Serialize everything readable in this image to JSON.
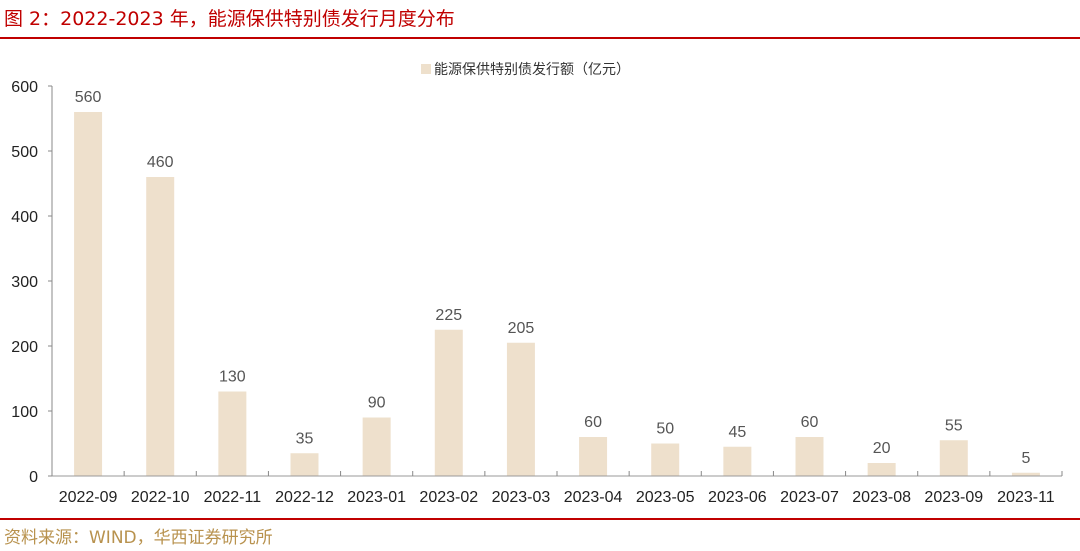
{
  "header": {
    "title": "图 2：2022-2023 年，能源保供特别债发行月度分布"
  },
  "footer": {
    "source": "资料来源：WIND，华西证券研究所"
  },
  "colors": {
    "accent": "#c00000",
    "bar": "#eee0cc",
    "source_text": "#b8924e"
  },
  "chart_data": {
    "type": "bar",
    "title": "",
    "legend": [
      "能源保供特别债发行额（亿元）"
    ],
    "legend_position": "top",
    "categories": [
      "2022-09",
      "2022-10",
      "2022-11",
      "2022-12",
      "2023-01",
      "2023-02",
      "2023-03",
      "2023-04",
      "2023-05",
      "2023-06",
      "2023-07",
      "2023-08",
      "2023-09",
      "2023-11"
    ],
    "series": [
      {
        "name": "能源保供特别债发行额（亿元）",
        "values": [
          560,
          460,
          130,
          35,
          90,
          225,
          205,
          60,
          50,
          45,
          60,
          20,
          55,
          5
        ]
      }
    ],
    "xlabel": "",
    "ylabel": "",
    "ylim": [
      0,
      600
    ],
    "yticks": [
      0,
      100,
      200,
      300,
      400,
      500,
      600
    ],
    "grid": false,
    "data_labels": true
  }
}
